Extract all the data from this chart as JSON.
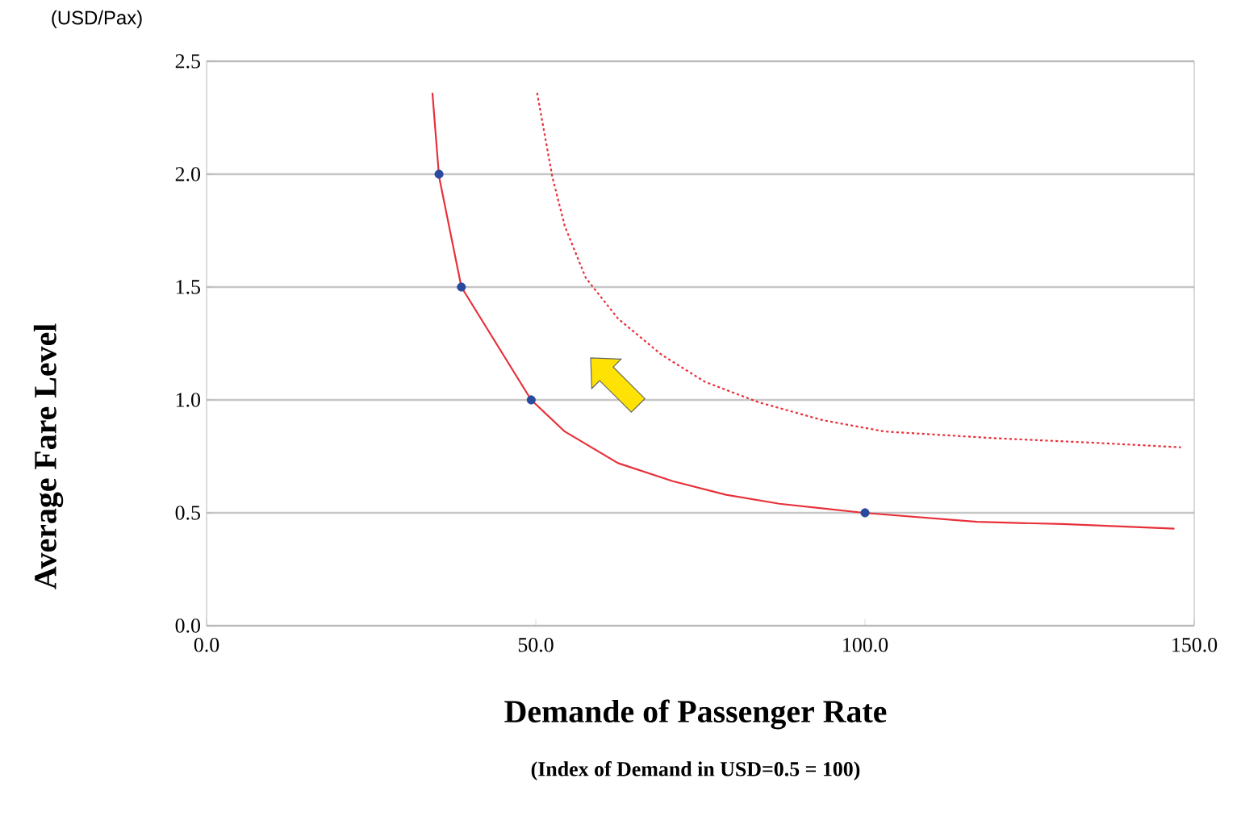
{
  "chart_data": {
    "type": "line",
    "xlabel": "Demande of Passenger Rate",
    "ylabel": "Average Fare Level",
    "annotations": [
      "(USD/Pax)",
      "(Index of Demand in USD=0.5 = 100)"
    ],
    "xlim": [
      0,
      150
    ],
    "ylim": [
      0,
      2.5
    ],
    "xticks": [
      {
        "value": 0,
        "label": "0.0"
      },
      {
        "value": 50,
        "label": "50.0"
      },
      {
        "value": 100,
        "label": "100.0"
      },
      {
        "value": 150,
        "label": "150.0"
      }
    ],
    "yticks": [
      {
        "value": 0,
        "label": "0.0"
      },
      {
        "value": 0.5,
        "label": "0.5"
      },
      {
        "value": 1,
        "label": "1.0"
      },
      {
        "value": 1.5,
        "label": "1.5"
      },
      {
        "value": 2,
        "label": "2.0"
      },
      {
        "value": 2.5,
        "label": "2.5"
      }
    ],
    "grid": "y",
    "series": [
      {
        "color": "#e8303a",
        "line_style": "solid",
        "marker": "none",
        "x": [
          34.3,
          35.3,
          38.7,
          49.3,
          54.4,
          62.5,
          70.8,
          78.9,
          87.0,
          99.8,
          117,
          130,
          147
        ],
        "values": [
          2.36,
          1.99,
          1.5,
          1.0,
          0.86,
          0.72,
          0.64,
          0.58,
          0.54,
          0.5,
          0.46,
          0.45,
          0.43
        ]
      },
      {
        "type": "line",
        "color": "#e8303a",
        "line_style": "dotted",
        "marker": "none",
        "x": [
          50.2,
          52.5,
          54.4,
          57.6,
          62.5,
          69.1,
          75.7,
          83.8,
          93.6,
          103,
          120,
          135,
          148
        ],
        "values": [
          2.36,
          1.99,
          1.77,
          1.54,
          1.36,
          1.2,
          1.08,
          0.99,
          0.91,
          0.86,
          0.83,
          0.81,
          0.79
        ]
      },
      {
        "type": "scatter",
        "color": "#2a4aa0",
        "marker": "circle",
        "x": [
          35.3,
          38.7,
          49.3,
          100
        ],
        "values": [
          2.0,
          1.5,
          1.0,
          0.5
        ]
      }
    ]
  }
}
